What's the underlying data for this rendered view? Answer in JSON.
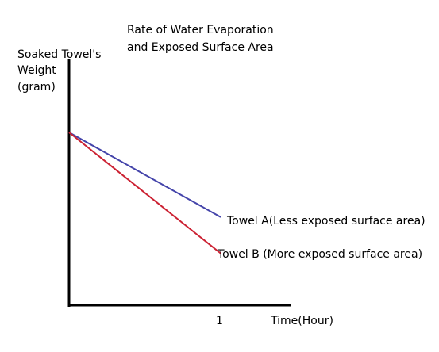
{
  "chart_data": {
    "type": "line",
    "title_lines": [
      "Rate of Water Evaporation",
      "and Exposed Surface Area"
    ],
    "ylabel_lines": [
      "Soaked Towel's",
      "Weight",
      "(gram)"
    ],
    "xlabel": "Time(Hour)",
    "x_ticks": [
      {
        "value": 1,
        "label": "1"
      }
    ],
    "x_range": [
      0,
      1.45
    ],
    "y_range": [
      0,
      1.6
    ],
    "series": [
      {
        "name": "Towel A(Less exposed surface area)",
        "color": "#4444aa",
        "points": [
          [
            0,
            1.0
          ],
          [
            1,
            0.51
          ]
        ]
      },
      {
        "name": "Towel B (More exposed surface area)",
        "color": "#cc2233",
        "points": [
          [
            0,
            1.0
          ],
          [
            1,
            0.3
          ]
        ]
      }
    ],
    "grid": false,
    "legend": "labels at line ends"
  }
}
